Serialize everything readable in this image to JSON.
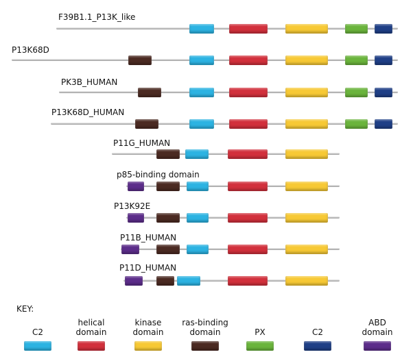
{
  "domain_colors": {
    "c2": "#2cb3e2",
    "helical": "#d2303c",
    "kinase": "#f7c935",
    "ras_binding": "#4b2a22",
    "px": "#6ab43c",
    "c2_navy": "#1f3f86",
    "abd": "#5c2d8a"
  },
  "proteins": [
    {
      "label": "F39B1.1_P13K_like",
      "domains": [
        "c2",
        "helical",
        "kinase",
        "px",
        "c2_navy"
      ]
    },
    {
      "label": "P13K68D",
      "domains": [
        "ras_binding",
        "c2",
        "helical",
        "kinase",
        "px",
        "c2_navy"
      ]
    },
    {
      "label": "PK3B_HUMAN",
      "domains": [
        "ras_binding",
        "c2",
        "helical",
        "kinase",
        "px",
        "c2_navy"
      ]
    },
    {
      "label": "P13K68D_HUMAN",
      "domains": [
        "ras_binding",
        "c2",
        "helical",
        "kinase",
        "px",
        "c2_navy"
      ]
    },
    {
      "label": "P11G_HUMAN",
      "domains": [
        "ras_binding",
        "c2",
        "helical",
        "kinase"
      ]
    },
    {
      "label": "p85-binding domain",
      "domains": [
        "abd",
        "ras_binding",
        "c2",
        "helical",
        "kinase"
      ]
    },
    {
      "label": "P13K92E",
      "domains": [
        "abd",
        "ras_binding",
        "c2",
        "helical",
        "kinase"
      ]
    },
    {
      "label": "P11B_HUMAN",
      "domains": [
        "abd",
        "ras_binding",
        "c2",
        "helical",
        "kinase"
      ]
    },
    {
      "label": "P11D_HUMAN",
      "domains": [
        "abd",
        "ras_binding",
        "c2",
        "helical",
        "kinase"
      ]
    }
  ],
  "key": {
    "title": "KEY:",
    "items": [
      {
        "label_line1": "",
        "label_line2": "C2",
        "domain": "c2"
      },
      {
        "label_line1": "helical",
        "label_line2": "domain",
        "domain": "helical"
      },
      {
        "label_line1": "kinase",
        "label_line2": "domain",
        "domain": "kinase"
      },
      {
        "label_line1": "ras-binding",
        "label_line2": "domain",
        "domain": "ras_binding"
      },
      {
        "label_line1": "",
        "label_line2": "PX",
        "domain": "px"
      },
      {
        "label_line1": "",
        "label_line2": "C2",
        "domain": "c2_navy"
      },
      {
        "label_line1": "ABD",
        "label_line2": "domain",
        "domain": "abd"
      }
    ]
  }
}
